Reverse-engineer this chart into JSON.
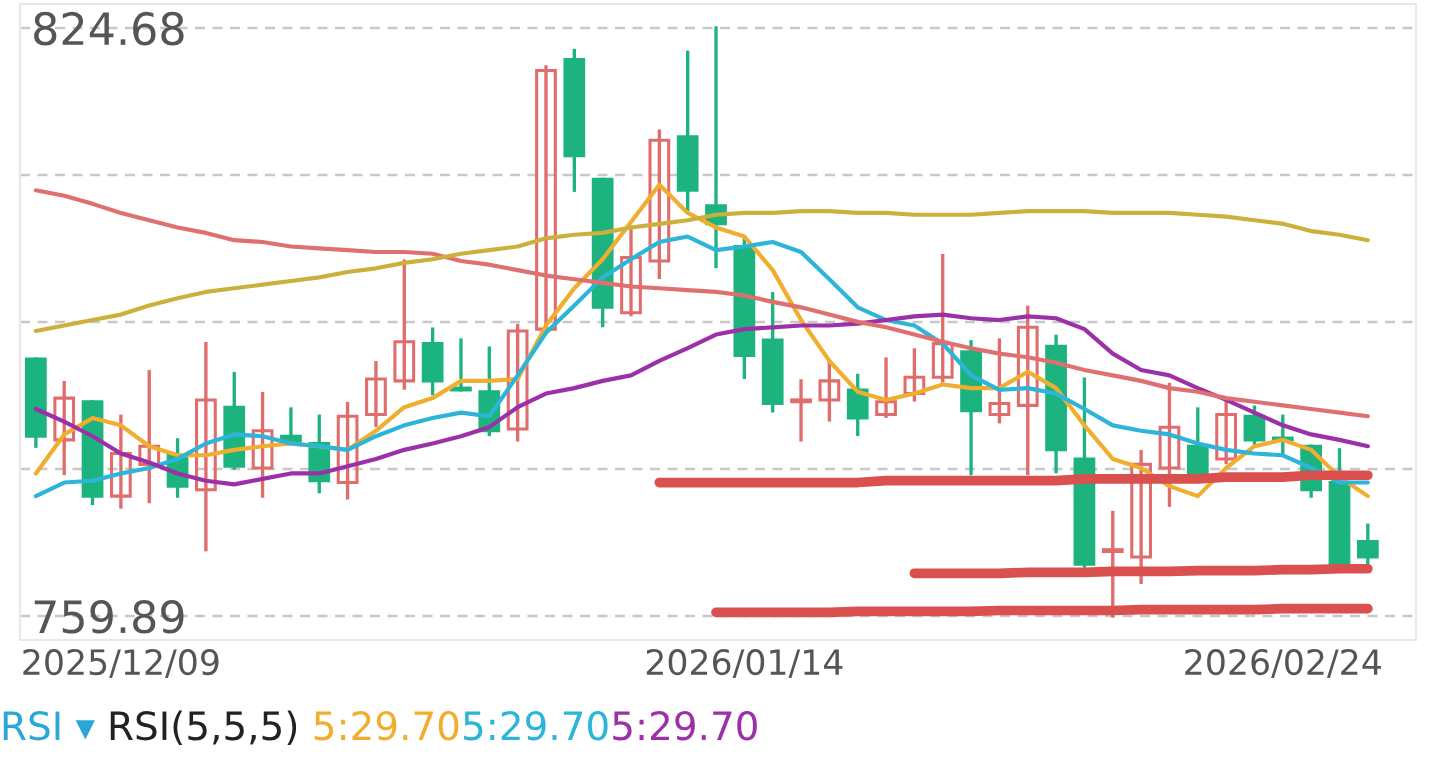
{
  "chart_data": {
    "type": "candlestick",
    "categories": [
      null,
      null,
      null,
      "2025/12/09",
      null,
      null,
      null,
      null,
      null,
      null,
      null,
      null,
      null,
      null,
      null,
      null,
      null,
      null,
      null,
      null,
      null,
      null,
      null,
      null,
      null,
      "2026/01/14",
      null,
      null,
      null,
      null,
      null,
      null,
      null,
      null,
      null,
      null,
      null,
      null,
      null,
      null,
      null,
      null,
      null,
      null,
      "2026/02/24",
      null,
      null,
      null
    ],
    "ohlc": [
      [
        788.2,
        788.2,
        778.6,
        779.7
      ],
      [
        779.3,
        785.6,
        775.6,
        783.9
      ],
      [
        783.5,
        783.5,
        772.3,
        773.1
      ],
      [
        773.1,
        781.9,
        771.9,
        777.8
      ],
      [
        776.6,
        786.8,
        772.5,
        778.6
      ],
      [
        777.6,
        779.3,
        773.1,
        774.2
      ],
      [
        773.8,
        789.9,
        767.2,
        783.7
      ],
      [
        782.9,
        786.6,
        776.2,
        776.4
      ],
      [
        776.2,
        784.4,
        773.1,
        780.3
      ],
      [
        779.7,
        782.7,
        778.9,
        778.9
      ],
      [
        778.9,
        781.9,
        773.6,
        774.8
      ],
      [
        774.6,
        783.3,
        772.9,
        781.9
      ],
      [
        782.1,
        787.8,
        780.9,
        786.0
      ],
      [
        785.8,
        799.0,
        785.0,
        790.1
      ],
      [
        789.9,
        791.5,
        784.4,
        785.8
      ],
      [
        785.0,
        790.3,
        784.8,
        784.8
      ],
      [
        784.6,
        789.4,
        779.9,
        780.3
      ],
      [
        780.5,
        791.9,
        779.3,
        791.3
      ],
      [
        791.5,
        820.4,
        791.5,
        820.0
      ],
      [
        821.2,
        822.2,
        806.8,
        810.6
      ],
      [
        808.0,
        808.0,
        791.9,
        793.9
      ],
      [
        793.3,
        802.7,
        793.1,
        799.4
      ],
      [
        799.0,
        813.3,
        797.2,
        812.3
      ],
      [
        812.7,
        822.0,
        804.7,
        806.8
      ],
      [
        805.1,
        824.68,
        798.4,
        803.1
      ],
      [
        800.6,
        801.3,
        786.2,
        788.6
      ],
      [
        790.3,
        795.4,
        782.5,
        783.3
      ],
      [
        783.5,
        785.8,
        779.3,
        783.7
      ],
      [
        783.7,
        787.8,
        781.5,
        785.8
      ],
      [
        784.8,
        786.4,
        779.9,
        781.7
      ],
      [
        782.1,
        788.2,
        781.9,
        783.5
      ],
      [
        784.4,
        789.2,
        783.7,
        786.2
      ],
      [
        786.2,
        799.6,
        785.8,
        789.9
      ],
      [
        789.0,
        790.1,
        775.6,
        782.5
      ],
      [
        782.1,
        790.3,
        781.3,
        783.3
      ],
      [
        783.1,
        793.9,
        775.6,
        791.7
      ],
      [
        789.6,
        790.7,
        775.8,
        778.2
      ],
      [
        777.2,
        786.0,
        765.4,
        765.6
      ],
      [
        767.0,
        771.3,
        759.89,
        767.2
      ],
      [
        766.4,
        778.0,
        763.6,
        776.6
      ],
      [
        776.2,
        785.4,
        772.1,
        780.7
      ],
      [
        778.6,
        782.7,
        775.6,
        775.6
      ],
      [
        777.2,
        783.5,
        776.8,
        782.1
      ],
      [
        781.9,
        782.9,
        778.9,
        779.3
      ],
      [
        779.5,
        781.9,
        777.6,
        779.3
      ],
      [
        778.6,
        778.6,
        773.1,
        773.8
      ],
      [
        774.6,
        778.2,
        765.6,
        765.6
      ],
      [
        768.1,
        769.9,
        765.4,
        766.4
      ]
    ],
    "colors": [
      "#1db37e",
      "#e06c6c",
      "#1db37e",
      "#e06c6c",
      "#e06c6c",
      "#1db37e",
      "#e06c6c",
      "#1db37e",
      "#e06c6c",
      "#1db37e",
      "#1db37e",
      "#e06c6c",
      "#e06c6c",
      "#e06c6c",
      "#1db37e",
      "#1db37e",
      "#1db37e",
      "#e06c6c",
      "#e06c6c",
      "#1db37e",
      "#1db37e",
      "#e06c6c",
      "#e06c6c",
      "#1db37e",
      "#1db37e",
      "#1db37e",
      "#1db37e",
      "#e06c6c",
      "#e06c6c",
      "#1db37e",
      "#e06c6c",
      "#e06c6c",
      "#e06c6c",
      "#1db37e",
      "#e06c6c",
      "#e06c6c",
      "#1db37e",
      "#1db37e",
      "#e06c6c",
      "#e06c6c",
      "#e06c6c",
      "#1db37e",
      "#e06c6c",
      "#1db37e",
      "#1db37e",
      "#1db37e",
      "#1db37e",
      "#1db37e"
    ],
    "series": [
      {
        "type": "line",
        "color": "#f0ad2e",
        "values": [
          775.6,
          779.9,
          781.7,
          780.9,
          778.6,
          777.6,
          777.6,
          778.2,
          778.6,
          778.9,
          778.6,
          778.2,
          780.3,
          782.9,
          783.9,
          785.8,
          785.8,
          786.0,
          791.9,
          796.0,
          799.2,
          803.3,
          807.4,
          804.3,
          802.7,
          801.7,
          798.0,
          792.5,
          788.0,
          784.6,
          783.7,
          784.4,
          785.4,
          785.0,
          785.0,
          786.8,
          785.0,
          780.9,
          777.2,
          776.2,
          774.2,
          773.1,
          776.2,
          778.6,
          779.3,
          778.2,
          775.2,
          773.1
        ]
      },
      {
        "type": "line",
        "color": "#2cb5d9",
        "values": [
          773.1,
          774.6,
          774.8,
          775.6,
          776.2,
          777.2,
          778.9,
          779.9,
          779.7,
          778.9,
          778.6,
          778.2,
          779.7,
          780.9,
          781.7,
          782.3,
          781.9,
          786.4,
          791.1,
          794.1,
          797.2,
          799.2,
          801.1,
          801.7,
          800.2,
          800.6,
          801.1,
          800.0,
          797.0,
          793.9,
          792.5,
          791.9,
          789.9,
          786.4,
          784.8,
          785.0,
          784.4,
          782.7,
          780.9,
          780.3,
          779.9,
          778.9,
          778.2,
          777.8,
          777.6,
          776.2,
          774.6,
          774.6
        ]
      },
      {
        "type": "line",
        "color": "#9b30a8",
        "values": [
          782.7,
          781.3,
          779.7,
          777.8,
          776.8,
          775.6,
          774.8,
          774.4,
          775.0,
          775.6,
          775.6,
          776.4,
          777.2,
          778.2,
          778.9,
          779.7,
          780.7,
          782.9,
          784.4,
          785.0,
          785.8,
          786.4,
          788.0,
          789.4,
          790.9,
          791.5,
          791.7,
          791.9,
          791.9,
          792.1,
          792.5,
          792.9,
          793.1,
          792.7,
          792.5,
          792.9,
          792.7,
          791.5,
          788.8,
          787.0,
          786.4,
          785.0,
          783.7,
          782.3,
          780.9,
          779.9,
          779.3,
          778.6
        ]
      },
      {
        "type": "line",
        "color": "#e07070",
        "values": [
          806.8,
          806.2,
          805.3,
          804.3,
          803.5,
          802.7,
          802.1,
          801.3,
          801.1,
          800.6,
          800.4,
          800.2,
          800.0,
          800.0,
          799.8,
          799.0,
          798.6,
          798.0,
          797.4,
          797.0,
          796.6,
          796.2,
          796.0,
          795.8,
          795.6,
          795.2,
          794.5,
          793.9,
          793.1,
          792.3,
          791.7,
          790.9,
          790.1,
          789.4,
          788.8,
          788.4,
          787.8,
          787.0,
          786.4,
          785.8,
          785.0,
          784.6,
          783.9,
          783.5,
          783.1,
          782.7,
          782.3,
          781.9
        ]
      },
      {
        "type": "line",
        "color": "#cbb03c",
        "values": [
          791.3,
          791.9,
          792.5,
          793.1,
          794.1,
          794.9,
          795.6,
          796.0,
          796.4,
          796.8,
          797.2,
          797.8,
          798.2,
          798.8,
          799.2,
          799.8,
          800.2,
          800.6,
          801.5,
          801.9,
          802.1,
          802.7,
          803.1,
          803.5,
          804.1,
          804.3,
          804.3,
          804.5,
          804.5,
          804.3,
          804.3,
          804.1,
          804.1,
          804.1,
          804.3,
          804.5,
          804.5,
          804.5,
          804.3,
          804.3,
          804.3,
          804.1,
          803.9,
          803.5,
          803.1,
          802.3,
          801.9,
          801.3
        ]
      },
      {
        "type": "line",
        "color": "#d9504f",
        "values": [
          null,
          null,
          null,
          null,
          null,
          null,
          null,
          null,
          null,
          null,
          null,
          null,
          null,
          null,
          null,
          null,
          null,
          null,
          null,
          null,
          null,
          null,
          774.6,
          774.6,
          774.6,
          774.6,
          774.6,
          774.6,
          774.6,
          774.6,
          774.8,
          774.8,
          774.8,
          774.8,
          774.8,
          774.8,
          774.8,
          775.0,
          775.0,
          775.0,
          775.0,
          775.0,
          775.2,
          775.2,
          775.2,
          775.4,
          775.4,
          775.4
        ]
      },
      {
        "type": "line",
        "color": "#d9504f",
        "values": [
          null,
          null,
          null,
          null,
          null,
          null,
          null,
          null,
          null,
          null,
          null,
          null,
          null,
          null,
          null,
          null,
          null,
          null,
          null,
          null,
          null,
          null,
          null,
          null,
          null,
          null,
          null,
          null,
          null,
          null,
          null,
          764.6,
          764.6,
          764.6,
          764.6,
          764.7,
          764.7,
          764.7,
          764.8,
          764.8,
          764.8,
          764.9,
          764.9,
          764.9,
          765.0,
          765.0,
          765.1,
          765.1
        ]
      },
      {
        "type": "line",
        "color": "#d9504f",
        "values": [
          null,
          null,
          null,
          null,
          null,
          null,
          null,
          null,
          null,
          null,
          null,
          null,
          null,
          null,
          null,
          null,
          null,
          null,
          null,
          null,
          null,
          null,
          null,
          null,
          760.3,
          760.3,
          760.3,
          760.3,
          760.3,
          760.4,
          760.4,
          760.4,
          760.4,
          760.4,
          760.5,
          760.5,
          760.5,
          760.5,
          760.5,
          760.6,
          760.6,
          760.6,
          760.6,
          760.6,
          760.7,
          760.7,
          760.7,
          760.7
        ]
      }
    ],
    "ylim": [
      757.25,
      827.32
    ],
    "yticks": [
      759.89,
      {
        "value": 776.09,
        "label": null
      },
      {
        "value": 792.29,
        "label": null
      },
      {
        "value": 808.48,
        "label": null
      },
      824.68
    ],
    "grid": "y",
    "annotations": [
      "RSI ▾",
      "RSI(5,5,5)",
      "5:29.70",
      "5:29.70",
      "5:29.70"
    ]
  }
}
